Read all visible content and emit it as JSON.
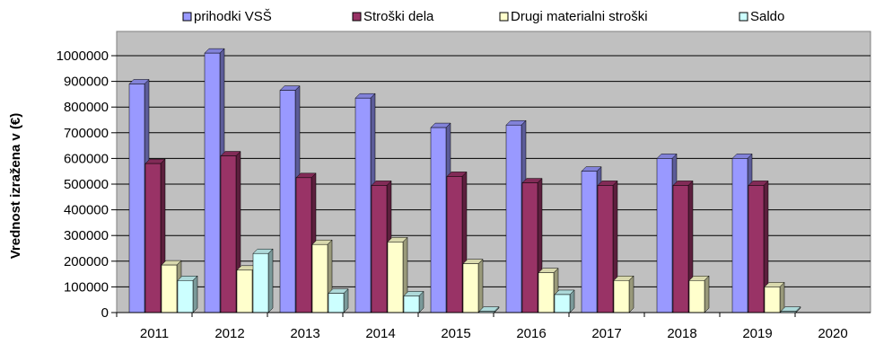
{
  "chart_data": {
    "type": "bar",
    "title": "",
    "xlabel": "",
    "ylabel": "Vrednost izražena v (€)",
    "categories": [
      "2011",
      "2012",
      "2013",
      "2014",
      "2015",
      "2016",
      "2017",
      "2018",
      "2019",
      "2020"
    ],
    "ylim": [
      0,
      1000000
    ],
    "yticks": [
      "0",
      "100000",
      "200000",
      "300000",
      "400000",
      "500000",
      "600000",
      "700000",
      "800000",
      "900000",
      "1000000"
    ],
    "grid": true,
    "legend_position": "top",
    "series": [
      {
        "name": "prihodki VSŠ",
        "color": "#9999ff",
        "values": [
          890000,
          1010000,
          865000,
          835000,
          720000,
          730000,
          550000,
          600000,
          600000,
          0
        ]
      },
      {
        "name": "Stroški dela",
        "color": "#993366",
        "values": [
          580000,
          610000,
          525000,
          495000,
          530000,
          505000,
          495000,
          495000,
          495000,
          0
        ]
      },
      {
        "name": "Drugi materialni stroški",
        "color": "#ffffcc",
        "values": [
          185000,
          165000,
          265000,
          275000,
          190000,
          155000,
          125000,
          125000,
          100000,
          0
        ]
      },
      {
        "name": "Saldo",
        "color": "#ccffff",
        "values": [
          125000,
          230000,
          75000,
          65000,
          5000,
          70000,
          0,
          0,
          5000,
          0
        ]
      }
    ]
  }
}
